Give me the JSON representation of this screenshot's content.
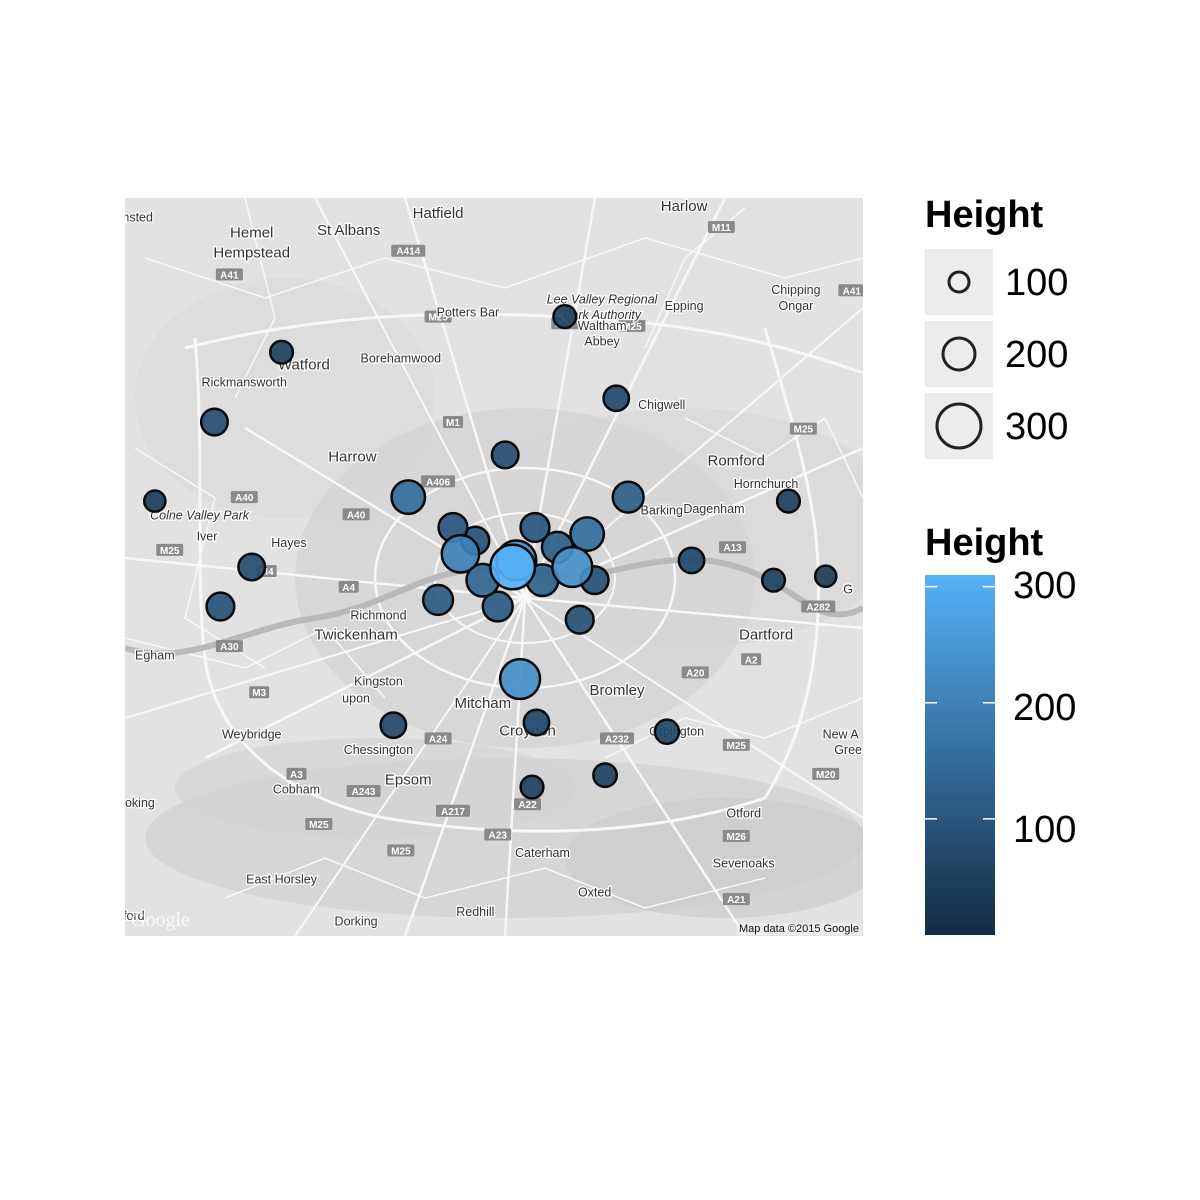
{
  "map": {
    "attribution": "Map data ©2015 Google",
    "watermark": "Google",
    "place_labels": [
      {
        "text": "Hemel",
        "x": -0.47,
        "y": 51.75
      },
      {
        "text": "Hempstead",
        "x": -0.47,
        "y": 51.735
      },
      {
        "text": "St Albans",
        "x": -0.34,
        "y": 51.752
      },
      {
        "text": "Hatfield",
        "x": -0.22,
        "y": 51.765
      },
      {
        "text": "Harlow",
        "x": 0.11,
        "y": 51.77
      },
      {
        "text": "amsted",
        "x": -0.63,
        "y": 51.762
      },
      {
        "text": "Lee Valley Regional",
        "x": 0.0,
        "y": 51.7
      },
      {
        "text": "Park Authority",
        "x": 0.0,
        "y": 51.688
      },
      {
        "text": "Potters Bar",
        "x": -0.18,
        "y": 51.69
      },
      {
        "text": "Epping",
        "x": 0.11,
        "y": 51.695
      },
      {
        "text": "Chipping",
        "x": 0.26,
        "y": 51.707
      },
      {
        "text": "Ongar",
        "x": 0.26,
        "y": 51.695
      },
      {
        "text": "Waltham",
        "x": 0.0,
        "y": 51.68
      },
      {
        "text": "Abbey",
        "x": 0.0,
        "y": 51.668
      },
      {
        "text": "Watford",
        "x": -0.4,
        "y": 51.65
      },
      {
        "text": "Borehamwood",
        "x": -0.27,
        "y": 51.655
      },
      {
        "text": "Rickmansworth",
        "x": -0.48,
        "y": 51.637
      },
      {
        "text": "Chigwell",
        "x": 0.08,
        "y": 51.62
      },
      {
        "text": "Harrow",
        "x": -0.335,
        "y": 51.58
      },
      {
        "text": "Romford",
        "x": 0.18,
        "y": 51.577
      },
      {
        "text": "Hornchurch",
        "x": 0.22,
        "y": 51.56
      },
      {
        "text": "Dagenham",
        "x": 0.15,
        "y": 51.541
      },
      {
        "text": "Barking",
        "x": 0.08,
        "y": 51.54
      },
      {
        "text": "Colne Valley Park",
        "x": -0.54,
        "y": 51.536
      },
      {
        "text": "Iver",
        "x": -0.53,
        "y": 51.52
      },
      {
        "text": "Hayes",
        "x": -0.42,
        "y": 51.515
      },
      {
        "text": "Dartford",
        "x": 0.22,
        "y": 51.445
      },
      {
        "text": "Twickenham",
        "x": -0.33,
        "y": 51.445
      },
      {
        "text": "Richmond",
        "x": -0.3,
        "y": 51.46
      },
      {
        "text": "Egham",
        "x": -0.6,
        "y": 51.43
      },
      {
        "text": "Kingston",
        "x": -0.3,
        "y": 51.41
      },
      {
        "text": "upon",
        "x": -0.33,
        "y": 51.397
      },
      {
        "text": "Mitcham",
        "x": -0.16,
        "y": 51.393
      },
      {
        "text": "Bromley",
        "x": 0.02,
        "y": 51.403
      },
      {
        "text": "Croydon",
        "x": -0.1,
        "y": 51.372
      },
      {
        "text": "Orpington",
        "x": 0.1,
        "y": 51.372
      },
      {
        "text": "Weybridge",
        "x": -0.47,
        "y": 51.37
      },
      {
        "text": "Chessington",
        "x": -0.3,
        "y": 51.358
      },
      {
        "text": "New A",
        "x": 0.32,
        "y": 51.37
      },
      {
        "text": "Gree",
        "x": 0.33,
        "y": 51.358
      },
      {
        "text": "Epsom",
        "x": -0.26,
        "y": 51.335
      },
      {
        "text": "Cobham",
        "x": -0.41,
        "y": 51.328
      },
      {
        "text": "oking",
        "x": -0.62,
        "y": 51.318
      },
      {
        "text": "Otford",
        "x": 0.19,
        "y": 51.31
      },
      {
        "text": "Caterham",
        "x": -0.08,
        "y": 51.28
      },
      {
        "text": "Sevenoaks",
        "x": 0.19,
        "y": 51.272
      },
      {
        "text": "East Horsley",
        "x": -0.43,
        "y": 51.26
      },
      {
        "text": "Oxted",
        "x": -0.01,
        "y": 51.25
      },
      {
        "text": "Redhill",
        "x": -0.17,
        "y": 51.235
      },
      {
        "text": "Dorking",
        "x": -0.33,
        "y": 51.228
      },
      {
        "text": "lford",
        "x": -0.63,
        "y": 51.232
      },
      {
        "text": "G",
        "x": 0.33,
        "y": 51.48
      }
    ],
    "road_shields": [
      {
        "text": "A41",
        "x": -0.5,
        "y": 51.722
      },
      {
        "text": "A414",
        "x": -0.26,
        "y": 51.74
      },
      {
        "text": "M11",
        "x": 0.16,
        "y": 51.758
      },
      {
        "text": "M25",
        "x": -0.22,
        "y": 51.69
      },
      {
        "text": "M25",
        "x": -0.05,
        "y": 51.685
      },
      {
        "text": "M25",
        "x": 0.04,
        "y": 51.683
      },
      {
        "text": "A41",
        "x": 0.335,
        "y": 51.71
      },
      {
        "text": "M25",
        "x": 0.27,
        "y": 51.605
      },
      {
        "text": "A406",
        "x": -0.22,
        "y": 51.565
      },
      {
        "text": "A40",
        "x": -0.48,
        "y": 51.553
      },
      {
        "text": "A40",
        "x": -0.33,
        "y": 51.54
      },
      {
        "text": "M25",
        "x": -0.58,
        "y": 51.513
      },
      {
        "text": "M4",
        "x": -0.45,
        "y": 51.497
      },
      {
        "text": "A4",
        "x": -0.34,
        "y": 51.485
      },
      {
        "text": "A13",
        "x": 0.175,
        "y": 51.515
      },
      {
        "text": "A282",
        "x": 0.29,
        "y": 51.47
      },
      {
        "text": "A2",
        "x": 0.2,
        "y": 51.43
      },
      {
        "text": "A30",
        "x": -0.5,
        "y": 51.44
      },
      {
        "text": "A20",
        "x": 0.125,
        "y": 51.42
      },
      {
        "text": "M3",
        "x": -0.46,
        "y": 51.405
      },
      {
        "text": "A24",
        "x": -0.22,
        "y": 51.37
      },
      {
        "text": "A232",
        "x": 0.02,
        "y": 51.37
      },
      {
        "text": "M25",
        "x": 0.18,
        "y": 51.365
      },
      {
        "text": "M20",
        "x": 0.3,
        "y": 51.343
      },
      {
        "text": "A3",
        "x": -0.41,
        "y": 51.343
      },
      {
        "text": "A243",
        "x": -0.32,
        "y": 51.33
      },
      {
        "text": "M25",
        "x": -0.38,
        "y": 51.305
      },
      {
        "text": "A217",
        "x": -0.2,
        "y": 51.315
      },
      {
        "text": "A22",
        "x": -0.1,
        "y": 51.32
      },
      {
        "text": "M26",
        "x": 0.18,
        "y": 51.296
      },
      {
        "text": "A23",
        "x": -0.14,
        "y": 51.297
      },
      {
        "text": "M25",
        "x": -0.27,
        "y": 51.285
      },
      {
        "text": "A21",
        "x": 0.18,
        "y": 51.248
      },
      {
        "text": "M1",
        "x": -0.2,
        "y": 51.61
      }
    ]
  },
  "chart_data": {
    "type": "scatter",
    "xlim": [
      -0.64,
      0.35
    ],
    "ylim": [
      51.22,
      51.78
    ],
    "size_legend": {
      "title": "Height",
      "breaks": [
        100,
        200,
        300
      ]
    },
    "color_legend": {
      "title": "Height",
      "breaks": [
        100,
        200,
        300
      ],
      "range": [
        0,
        310
      ],
      "low_color": "#132b43",
      "high_color": "#56b1f7"
    },
    "points": [
      {
        "x": -0.12,
        "y": 51.5,
        "height": 310
      },
      {
        "x": -0.115,
        "y": 51.505,
        "height": 235
      },
      {
        "x": -0.19,
        "y": 51.51,
        "height": 200
      },
      {
        "x": -0.04,
        "y": 51.5,
        "height": 235
      },
      {
        "x": -0.11,
        "y": 51.415,
        "height": 235
      },
      {
        "x": -0.02,
        "y": 51.525,
        "height": 150
      },
      {
        "x": -0.26,
        "y": 51.553,
        "height": 150
      },
      {
        "x": 0.035,
        "y": 51.553,
        "height": 120
      },
      {
        "x": -0.16,
        "y": 51.49,
        "height": 140
      },
      {
        "x": -0.08,
        "y": 51.49,
        "height": 130
      },
      {
        "x": -0.06,
        "y": 51.515,
        "height": 120
      },
      {
        "x": -0.22,
        "y": 51.475,
        "height": 110
      },
      {
        "x": -0.14,
        "y": 51.47,
        "height": 110
      },
      {
        "x": -0.09,
        "y": 51.53,
        "height": 100
      },
      {
        "x": -0.2,
        "y": 51.53,
        "height": 100
      },
      {
        "x": -0.03,
        "y": 51.46,
        "height": 90
      },
      {
        "x": -0.17,
        "y": 51.52,
        "height": 90
      },
      {
        "x": -0.01,
        "y": 51.49,
        "height": 90
      },
      {
        "x": -0.52,
        "y": 51.61,
        "height": 80
      },
      {
        "x": -0.512,
        "y": 51.47,
        "height": 90
      },
      {
        "x": -0.47,
        "y": 51.5,
        "height": 80
      },
      {
        "x": -0.28,
        "y": 51.38,
        "height": 70
      },
      {
        "x": -0.13,
        "y": 51.585,
        "height": 80
      },
      {
        "x": 0.019,
        "y": 51.628,
        "height": 70
      },
      {
        "x": 0.12,
        "y": 51.505,
        "height": 70
      },
      {
        "x": -0.088,
        "y": 51.382,
        "height": 70
      },
      {
        "x": 0.087,
        "y": 51.375,
        "height": 60
      },
      {
        "x": 0.004,
        "y": 51.342,
        "height": 55
      },
      {
        "x": -0.094,
        "y": 51.333,
        "height": 50
      },
      {
        "x": 0.25,
        "y": 51.55,
        "height": 50
      },
      {
        "x": 0.23,
        "y": 51.49,
        "height": 50
      },
      {
        "x": -0.6,
        "y": 51.55,
        "height": 40
      },
      {
        "x": -0.43,
        "y": 51.663,
        "height": 50
      },
      {
        "x": -0.05,
        "y": 51.69,
        "height": 50
      },
      {
        "x": 0.3,
        "y": 51.493,
        "height": 40
      }
    ]
  }
}
